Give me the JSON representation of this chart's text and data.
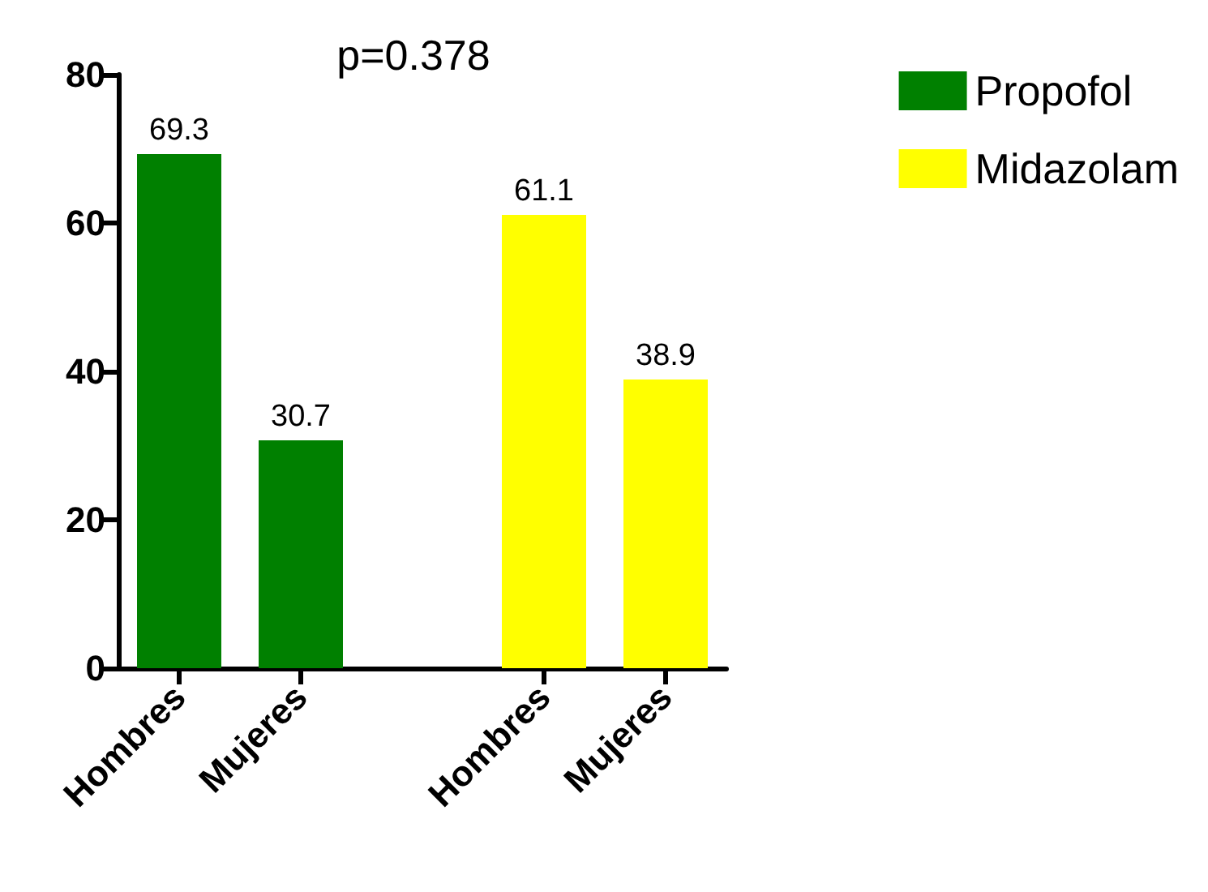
{
  "chart_data": {
    "type": "bar",
    "title": "p=0.378",
    "categories": [
      "Hombres",
      "Mujeres",
      null,
      "Hombres",
      "Mujeres"
    ],
    "series": [
      {
        "name": "Propofol",
        "color": "#008000",
        "values": [
          69.3,
          30.7,
          null,
          null,
          null
        ]
      },
      {
        "name": "Midazolam",
        "color": "#ffff00",
        "values": [
          null,
          null,
          null,
          61.1,
          38.9
        ]
      }
    ],
    "ylim": [
      0,
      80
    ],
    "yticks": [
      0,
      20,
      40,
      60,
      80
    ],
    "grid": false,
    "legend": "top right",
    "data_labels": true
  }
}
